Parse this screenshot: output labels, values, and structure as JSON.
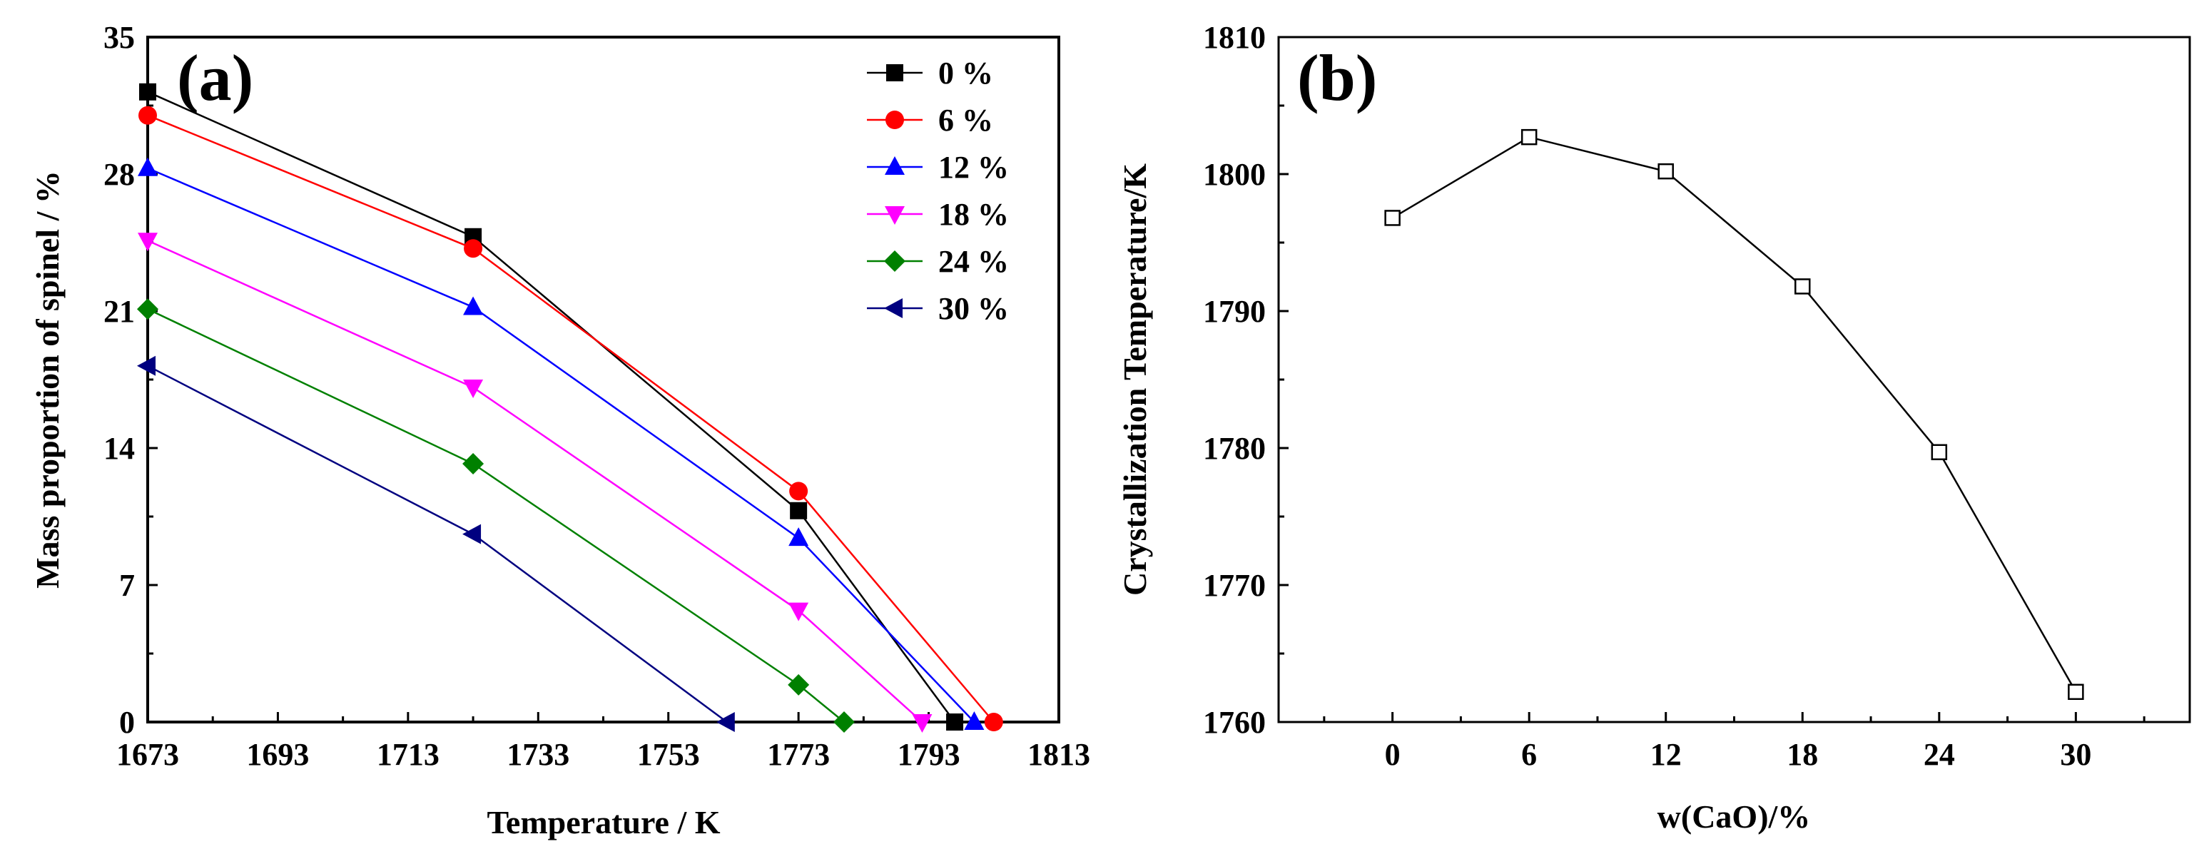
{
  "chart_data": [
    {
      "type": "line",
      "panel_label": "(a)",
      "xlabel": "Temperature / K",
      "ylabel": "Mass proportion of spinel / %",
      "xlim": [
        1673,
        1813
      ],
      "ylim": [
        0,
        35
      ],
      "xticks": [
        "1673",
        "1693",
        "1713",
        "1733",
        "1753",
        "1773",
        "1793",
        "1813"
      ],
      "yticks": [
        "0",
        "7",
        "14",
        "21",
        "28",
        "35"
      ],
      "legend_position": "top-right",
      "series": [
        {
          "name": "0 %",
          "color": "#000000",
          "marker": "square",
          "x": [
            1673,
            1723,
            1773,
            1797
          ],
          "y": [
            32.2,
            24.8,
            10.8,
            0
          ]
        },
        {
          "name": "6 %",
          "color": "#ff0000",
          "marker": "circle",
          "x": [
            1673,
            1723,
            1773,
            1803
          ],
          "y": [
            31.0,
            24.2,
            11.8,
            0
          ]
        },
        {
          "name": "12 %",
          "color": "#0000ff",
          "marker": "triangle-up",
          "x": [
            1673,
            1723,
            1773,
            1800
          ],
          "y": [
            28.3,
            21.2,
            9.4,
            0
          ]
        },
        {
          "name": "18 %",
          "color": "#ff00ff",
          "marker": "triangle-down",
          "x": [
            1673,
            1723,
            1773,
            1792
          ],
          "y": [
            24.6,
            17.1,
            5.7,
            0
          ]
        },
        {
          "name": "24 %",
          "color": "#008000",
          "marker": "diamond",
          "x": [
            1673,
            1723,
            1773,
            1780
          ],
          "y": [
            21.1,
            13.2,
            1.9,
            0
          ]
        },
        {
          "name": "30 %",
          "color": "#000080",
          "marker": "triangle-left",
          "x": [
            1673,
            1723,
            1762
          ],
          "y": [
            18.2,
            9.6,
            0
          ]
        }
      ]
    },
    {
      "type": "line",
      "panel_label": "(b)",
      "xlabel": "w(CaO)/%",
      "ylabel": "Crystallization Temperature/K",
      "xlim": [
        -5,
        35
      ],
      "ylim": [
        1760,
        1810
      ],
      "xticks": [
        "0",
        "6",
        "12",
        "18",
        "24",
        "30"
      ],
      "yticks": [
        "1760",
        "1770",
        "1780",
        "1790",
        "1800",
        "1810"
      ],
      "series": [
        {
          "name": "crystallization",
          "color": "#000000",
          "marker": "open-square",
          "x": [
            0,
            6,
            12,
            18,
            24,
            30
          ],
          "y": [
            1796.8,
            1802.7,
            1800.2,
            1791.8,
            1779.7,
            1762.2
          ]
        }
      ]
    }
  ]
}
